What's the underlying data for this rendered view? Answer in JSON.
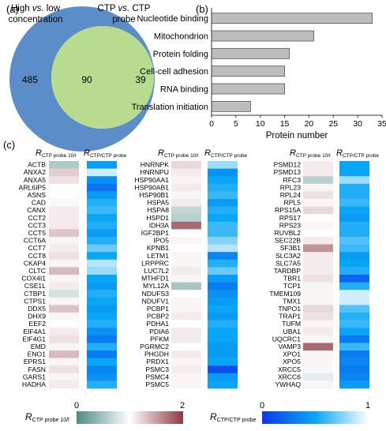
{
  "panels": {
    "a": "(a)",
    "b": "(b)",
    "c": "(c)"
  },
  "chart_data": [
    {
      "type": "venn",
      "sets": [
        {
          "name_parts": [
            "High ",
            "vs.",
            " low"
          ],
          "name_line2": "concentration",
          "only": "485",
          "color": "#5b8ec9"
        },
        {
          "name_parts": [
            "CTP ",
            "vs.",
            " CTP"
          ],
          "name_line2": "probe",
          "only": "39",
          "color": "#fde7a3"
        }
      ],
      "overlap": "90",
      "overlap_color": "#b7dc8f"
    },
    {
      "type": "bar",
      "orientation": "horizontal",
      "categories": [
        "Nucleotide binding",
        "Mitochondrion",
        "Protein folding",
        "Cell-cell adhesion",
        "RNA binding",
        "Translation initiation"
      ],
      "values": [
        33,
        21,
        16,
        15,
        15,
        8
      ],
      "xlabel": "Protein number",
      "xlim": [
        0,
        35
      ],
      "xticks": [
        0,
        5,
        10,
        15,
        20,
        25,
        30,
        35
      ],
      "bar_color": "#bdbdbd"
    },
    {
      "type": "heatmap",
      "col_headers": {
        "a_main": "R",
        "a_sub": "CTP probe 10/l",
        "b_main": "R",
        "b_sub": "CTP/CTP probe"
      },
      "columns": [
        {
          "genes": [
            "ACTB",
            "ANXA2",
            "ANXA5",
            "ARL6IP5",
            "ASNS",
            "CAD",
            "CANX",
            "CCT2",
            "CCT3",
            "CCT5",
            "CCT6A",
            "CCT7",
            "CCT8",
            "CKAP4",
            "CLTC",
            "COX4I1",
            "CSE1L",
            "CTBP1",
            "CTPS1",
            "DDX5",
            "DHX9",
            "EEF2",
            "EIF4A1",
            "EIF4G1",
            "EMD",
            "ENO1",
            "EPRS1",
            "FASN",
            "GARS1",
            "HADHA"
          ],
          "a": [
            0.55,
            1.25,
            1.15,
            1.0,
            1.0,
            0.95,
            1.1,
            1.1,
            1.1,
            1.3,
            1.05,
            1.1,
            1.15,
            1.05,
            1.35,
            1.05,
            1.1,
            0.75,
            1.05,
            1.3,
            1.05,
            1.0,
            1.1,
            1.15,
            1.05,
            1.35,
            1.05,
            1.15,
            1.05,
            1.1
          ],
          "b": [
            0.45,
            0.9,
            0.4,
            0.25,
            0.45,
            0.55,
            0.6,
            0.5,
            0.55,
            0.45,
            0.55,
            0.7,
            0.5,
            0.85,
            0.8,
            0.5,
            0.45,
            0.55,
            0.5,
            0.45,
            0.5,
            0.55,
            0.4,
            0.3,
            0.55,
            0.3,
            0.5,
            0.35,
            0.4,
            0.55
          ]
        },
        {
          "genes": [
            "HNRNPK",
            "HNRNPU",
            "HSP90AA1",
            "HSP90AB1",
            "HSP90B1",
            "HSPA5",
            "HSPA8",
            "HSPD1",
            "IDH3A",
            "IGF2BP1",
            "IPO5",
            "KPNB1",
            "LETM1",
            "LRPPRC",
            "LUC7L2",
            "MTHFD1",
            "MYL12A",
            "NDUFS3",
            "NDUFV1",
            "PCBP1",
            "PCBP2",
            "PDHA1",
            "PDIA6",
            "PFKM",
            "PGRMC2",
            "PHGDH",
            "PRDX1",
            "PSMC3",
            "PSMC4",
            "PSMC5"
          ],
          "a": [
            1.2,
            1.1,
            1.05,
            1.1,
            1.05,
            1.1,
            0.65,
            0.6,
            1.75,
            1.0,
            1.05,
            1.0,
            1.05,
            1.05,
            1.1,
            1.05,
            0.5,
            1.0,
            1.05,
            1.05,
            1.1,
            1.0,
            1.1,
            1.1,
            1.0,
            1.1,
            1.05,
            1.1,
            1.05,
            1.05
          ],
          "b": [
            0.8,
            0.4,
            0.5,
            0.55,
            0.6,
            0.45,
            0.55,
            0.5,
            0.6,
            0.6,
            0.75,
            0.85,
            0.35,
            0.55,
            0.7,
            0.45,
            0.3,
            0.4,
            0.45,
            0.5,
            0.45,
            0.55,
            0.5,
            0.5,
            0.45,
            0.45,
            0.5,
            0.1,
            0.45,
            0.5
          ]
        },
        {
          "genes": [
            "PSMD12",
            "PSMD13",
            "RFC3",
            "RPL23",
            "RPL24",
            "RPL5",
            "RPS15A",
            "RPS17",
            "RPS23",
            "RUVBL2",
            "SEC22B",
            "SF3B1",
            "SLC3A2",
            "SLC7A5",
            "TARDBP",
            "TBR1",
            "TCP1",
            "TMEM109",
            "TMX1",
            "TNPO1",
            "TRAP1",
            "TUFM",
            "UBA1",
            "UQCRC1",
            "VAMP3",
            "XPO1",
            "XPO5",
            "XRCC5",
            "XRCC6",
            "YWHAQ"
          ],
          "a": [
            1.1,
            1.1,
            0.6,
            1.05,
            1.15,
            1.05,
            1.2,
            1.0,
            1.05,
            1.0,
            1.1,
            1.55,
            1.1,
            1.1,
            1.1,
            1.15,
            1.05,
            1.05,
            1.05,
            1.2,
            1.15,
            1.05,
            1.1,
            1.05,
            1.75,
            1.05,
            1.05,
            0.95,
            0.85,
            1.05
          ],
          "b": [
            0.5,
            0.5,
            0.8,
            0.55,
            0.55,
            0.6,
            0.5,
            0.45,
            0.55,
            0.55,
            0.65,
            0.6,
            0.45,
            0.5,
            0.55,
            0.2,
            0.55,
            0.9,
            0.9,
            0.65,
            0.55,
            0.6,
            0.5,
            0.3,
            0.6,
            0.3,
            0.35,
            0.3,
            0.35,
            0.45
          ]
        }
      ],
      "legend_a": {
        "label_main": "R",
        "label_sub": "CTP probe 10/l",
        "min": "0",
        "max": "2",
        "colors": [
          "#4e8a86",
          "#ffffff",
          "#8e3a40"
        ]
      },
      "legend_b": {
        "label_main": "R",
        "label_sub": "CTP/CTP probe",
        "min": "0",
        "max": "1",
        "colors": [
          "#0b3bea",
          "#0aa6f6",
          "#ffffff"
        ]
      }
    }
  ]
}
